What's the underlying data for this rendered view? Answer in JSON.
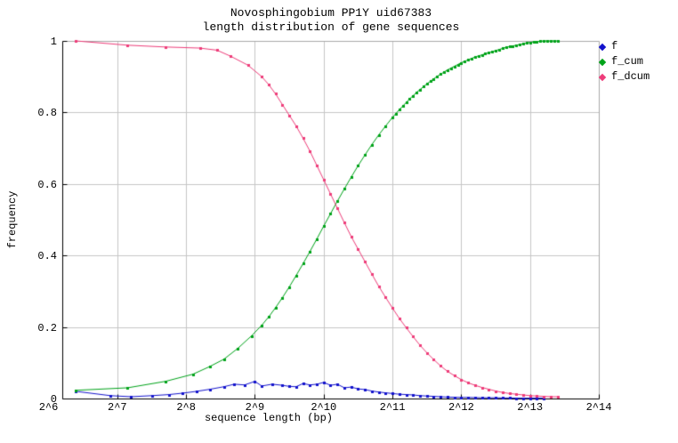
{
  "chart_data": {
    "type": "line",
    "title": "Novosphingobium PP1Y uid67383",
    "subtitle": "length distribution of gene sequences",
    "xlabel": "sequence length (bp)",
    "ylabel": "frequency",
    "x_scale": "log2",
    "x_log2_range": [
      6.2,
      14.0
    ],
    "y_range": [
      0,
      1
    ],
    "grid": true,
    "legend_position": "outside-top-right",
    "x_ticks": [
      {
        "log2": 6,
        "label": "2^6"
      },
      {
        "log2": 7,
        "label": "2^7"
      },
      {
        "log2": 8,
        "label": "2^8"
      },
      {
        "log2": 9,
        "label": "2^9"
      },
      {
        "log2": 10,
        "label": "2^10"
      },
      {
        "log2": 11,
        "label": "2^11"
      },
      {
        "log2": 12,
        "label": "2^12"
      },
      {
        "log2": 13,
        "label": "2^13"
      },
      {
        "log2": 14,
        "label": "2^14"
      }
    ],
    "y_ticks": [
      {
        "v": 0,
        "label": "0"
      },
      {
        "v": 0.2,
        "label": "0.2"
      },
      {
        "v": 0.4,
        "label": "0.4"
      },
      {
        "v": 0.6,
        "label": "0.6"
      },
      {
        "v": 0.8,
        "label": "0.8"
      },
      {
        "v": 1,
        "label": "1"
      }
    ],
    "series": [
      {
        "name": "f",
        "color": "#1313cc",
        "marker": "square",
        "x_log2": [
          6.4,
          6.9,
          7.2,
          7.5,
          7.75,
          7.95,
          8.15,
          8.35,
          8.55,
          8.7,
          8.85,
          9.0,
          9.1,
          9.25,
          9.4,
          9.5,
          9.6,
          9.7,
          9.8,
          9.9,
          10.0,
          10.1,
          10.2,
          10.3,
          10.4,
          10.5,
          10.6,
          10.7,
          10.8,
          10.9,
          11.0,
          11.1,
          11.2,
          11.3,
          11.4,
          11.5,
          11.6,
          11.7,
          11.8,
          11.9,
          12.0,
          12.1,
          12.2,
          12.3,
          12.4,
          12.5,
          12.6,
          12.7,
          12.8,
          12.9,
          13.0,
          13.1,
          13.2
        ],
        "values": [
          0.02,
          0.008,
          0.005,
          0.008,
          0.011,
          0.015,
          0.02,
          0.026,
          0.033,
          0.04,
          0.038,
          0.048,
          0.035,
          0.04,
          0.037,
          0.034,
          0.033,
          0.042,
          0.038,
          0.04,
          0.045,
          0.037,
          0.04,
          0.03,
          0.032,
          0.027,
          0.025,
          0.021,
          0.018,
          0.016,
          0.014,
          0.012,
          0.011,
          0.01,
          0.008,
          0.007,
          0.006,
          0.005,
          0.004,
          0.0035,
          0.003,
          0.003,
          0.0025,
          0.002,
          0.002,
          0.002,
          0.0015,
          0.0015,
          0.001,
          0.001,
          0.001,
          0.001,
          0.001
        ]
      },
      {
        "name": "f_cum",
        "color": "#00a319",
        "marker": "square",
        "x_log2": [
          6.4,
          7.15,
          7.7,
          8.1,
          8.35,
          8.55,
          8.75,
          8.95,
          9.1,
          9.2,
          9.3,
          9.4,
          9.5,
          9.6,
          9.7,
          9.8,
          9.9,
          10.0,
          10.1,
          10.2,
          10.3,
          10.4,
          10.5,
          10.6,
          10.7,
          10.8,
          10.9,
          11.0,
          11.05,
          11.1,
          11.15,
          11.2,
          11.25,
          11.3,
          11.35,
          11.4,
          11.45,
          11.5,
          11.55,
          11.6,
          11.65,
          11.7,
          11.75,
          11.8,
          11.85,
          11.9,
          11.95,
          12.0,
          12.05,
          12.1,
          12.15,
          12.2,
          12.25,
          12.3,
          12.35,
          12.4,
          12.45,
          12.5,
          12.55,
          12.6,
          12.65,
          12.7,
          12.75,
          12.8,
          12.85,
          12.9,
          12.95,
          13.0,
          13.05,
          13.1,
          13.15,
          13.2,
          13.25,
          13.3,
          13.35,
          13.4
        ],
        "values": [
          0.023,
          0.03,
          0.048,
          0.068,
          0.09,
          0.11,
          0.14,
          0.175,
          0.205,
          0.228,
          0.254,
          0.282,
          0.312,
          0.344,
          0.377,
          0.411,
          0.446,
          0.482,
          0.517,
          0.552,
          0.586,
          0.619,
          0.651,
          0.681,
          0.71,
          0.737,
          0.762,
          0.786,
          0.797,
          0.808,
          0.818,
          0.828,
          0.838,
          0.847,
          0.856,
          0.864,
          0.872,
          0.88,
          0.887,
          0.894,
          0.901,
          0.907,
          0.913,
          0.919,
          0.924,
          0.929,
          0.934,
          0.939,
          0.943,
          0.947,
          0.951,
          0.955,
          0.958,
          0.961,
          0.964,
          0.967,
          0.97,
          0.973,
          0.976,
          0.979,
          0.982,
          0.984,
          0.986,
          0.988,
          0.99,
          0.992,
          0.994,
          0.996,
          0.997,
          0.998,
          0.999,
          1.0,
          1.0,
          1.0,
          1.0,
          1.0
        ]
      },
      {
        "name": "f_dcum",
        "color": "#ee3d7a",
        "marker": "square",
        "x_log2": [
          6.4,
          7.15,
          7.7,
          8.2,
          8.45,
          8.65,
          8.9,
          9.1,
          9.2,
          9.3,
          9.4,
          9.5,
          9.6,
          9.7,
          9.8,
          9.9,
          10.0,
          10.1,
          10.2,
          10.3,
          10.4,
          10.5,
          10.6,
          10.7,
          10.8,
          10.9,
          11.0,
          11.1,
          11.2,
          11.3,
          11.4,
          11.5,
          11.6,
          11.7,
          11.8,
          11.9,
          12.0,
          12.1,
          12.2,
          12.3,
          12.4,
          12.5,
          12.6,
          12.7,
          12.8,
          12.9,
          13.0,
          13.1,
          13.2,
          13.3,
          13.4
        ],
        "values": [
          1.0,
          0.988,
          0.983,
          0.98,
          0.974,
          0.957,
          0.932,
          0.9,
          0.878,
          0.852,
          0.822,
          0.792,
          0.762,
          0.728,
          0.692,
          0.652,
          0.612,
          0.572,
          0.532,
          0.492,
          0.453,
          0.418,
          0.383,
          0.348,
          0.314,
          0.283,
          0.253,
          0.224,
          0.198,
          0.173,
          0.149,
          0.128,
          0.109,
          0.091,
          0.076,
          0.064,
          0.053,
          0.044,
          0.037,
          0.031,
          0.026,
          0.021,
          0.017,
          0.014,
          0.012,
          0.01,
          0.008,
          0.007,
          0.006,
          0.005,
          0.005
        ]
      }
    ]
  },
  "colors": {
    "background": "#ffffff",
    "grid": "#c6c6c6",
    "border_light": "#a9a9a9",
    "axis": "#000000",
    "f": "#1313cc",
    "f_cum": "#00a319",
    "f_dcum": "#ee3d7a"
  }
}
